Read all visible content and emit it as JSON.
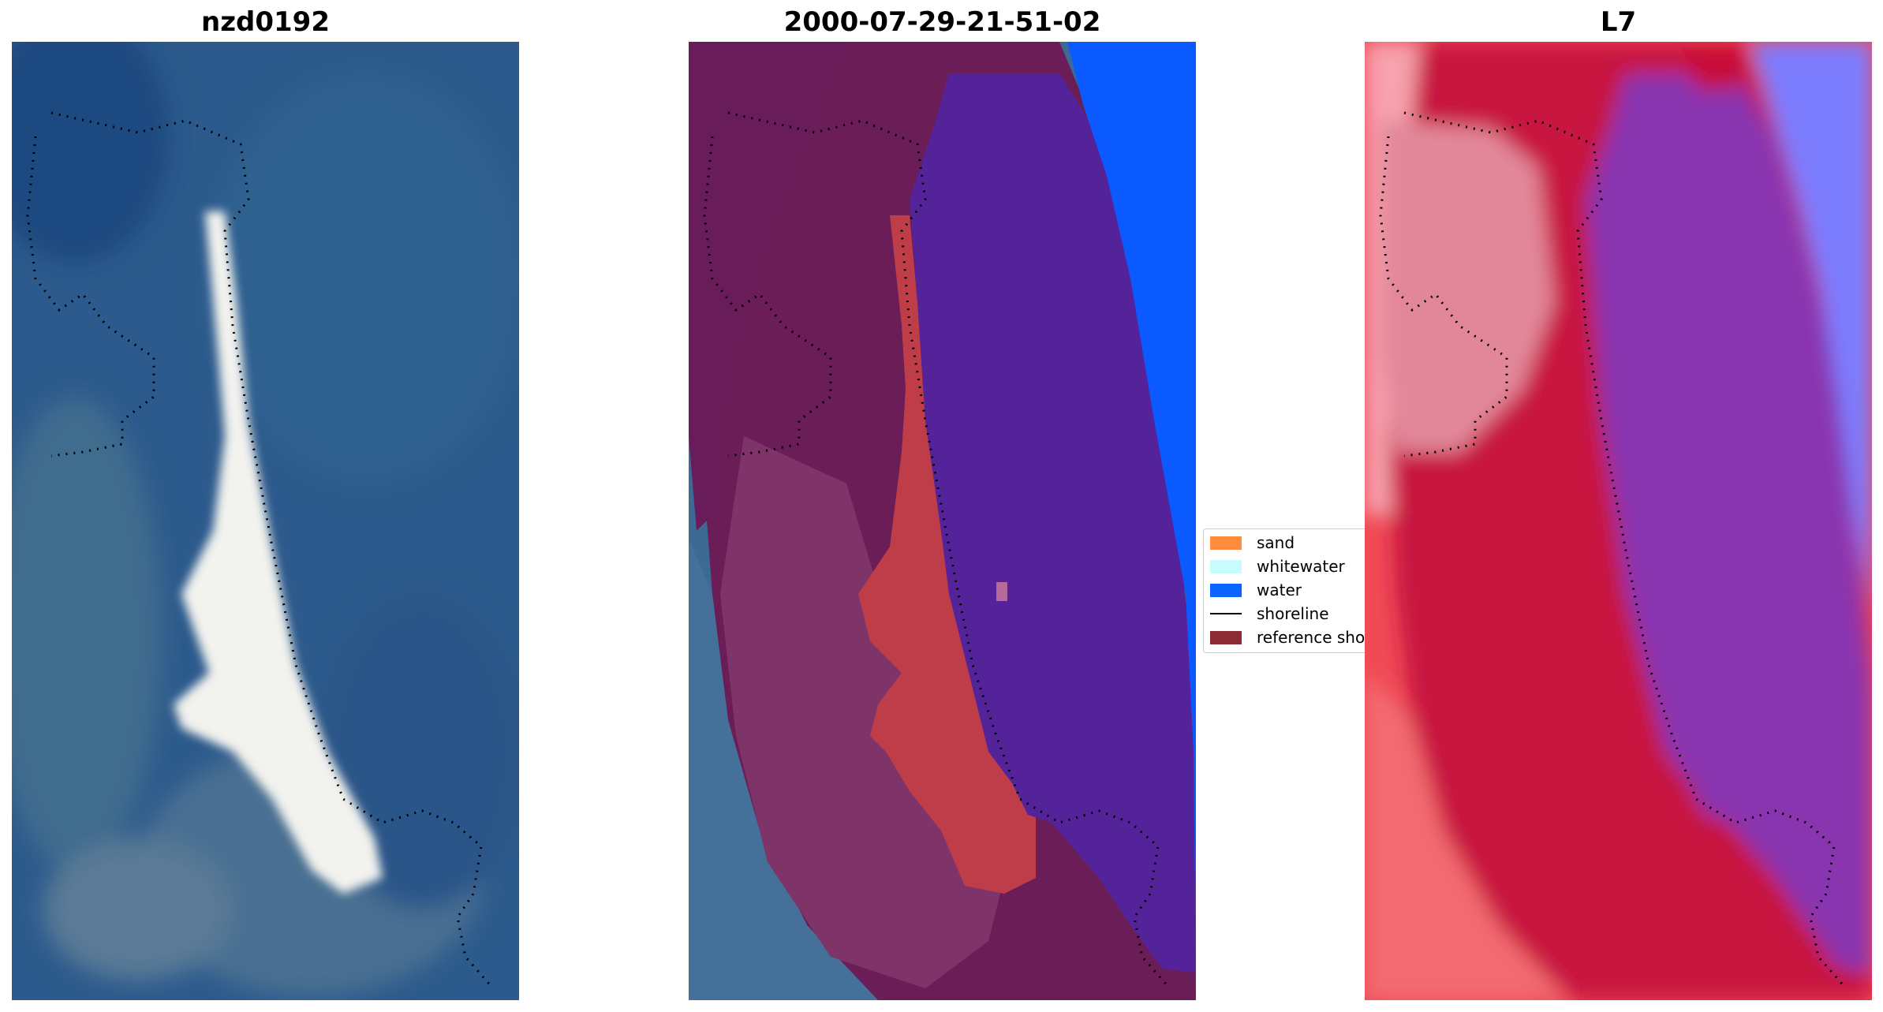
{
  "panels": [
    {
      "title": "nzd0192"
    },
    {
      "title": "2000-07-29-21-51-02"
    },
    {
      "title": "L7"
    }
  ],
  "legend": {
    "items": [
      {
        "label": "sand",
        "color": "#ff8c3c",
        "kind": "patch"
      },
      {
        "label": "whitewater",
        "color": "#c8fcfc",
        "kind": "patch"
      },
      {
        "label": "water",
        "color": "#0a64ff",
        "kind": "patch"
      },
      {
        "label": "shoreline",
        "color": "#000000",
        "kind": "line"
      },
      {
        "label": "reference sho",
        "color": "#8c2a35",
        "kind": "patch"
      }
    ]
  },
  "colors": {
    "rgb_water": "#2a5a8e",
    "rgb_sand": "#f4f4f0",
    "class_land_overlay": "#6e1d5a",
    "class_sand": "#c0404a",
    "class_water": "#55249a",
    "class_open_water": "#0a5aff",
    "mndwi_red": "#c4153c",
    "mndwi_purple": "#8a3ab0",
    "mndwi_blue": "#7a7aff"
  }
}
